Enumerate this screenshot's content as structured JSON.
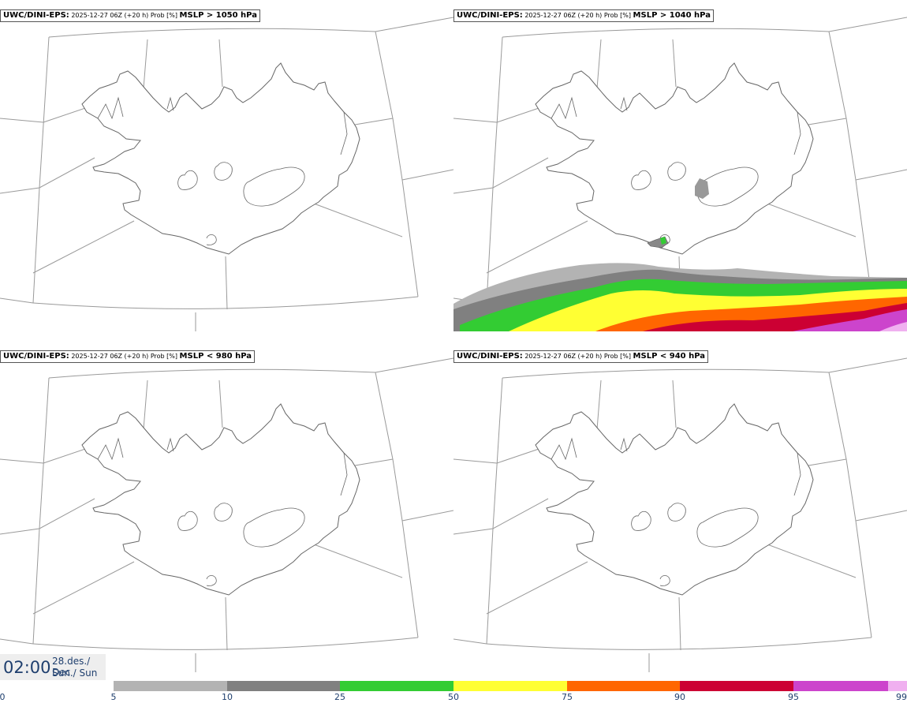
{
  "panels": [
    {
      "model": "UWC/DINI-EPS:",
      "info": "2025-12-27 06Z (+20 h) Prob [%]",
      "threshold": "MSLP > 1050 hPa"
    },
    {
      "model": "UWC/DINI-EPS:",
      "info": "2025-12-27 06Z (+20 h) Prob [%]",
      "threshold": "MSLP > 1040 hPa"
    },
    {
      "model": "UWC/DINI-EPS:",
      "info": "2025-12-27 06Z (+20 h) Prob [%]",
      "threshold": "MSLP < 980 hPa"
    },
    {
      "model": "UWC/DINI-EPS:",
      "info": "2025-12-27 06Z (+20 h) Prob [%]",
      "threshold": "MSLP < 940 hPa"
    }
  ],
  "time": {
    "clock": "02:00",
    "date_line": "28.des./ Dec",
    "day_line": "Sun./ Sun"
  },
  "legend": {
    "ticks": [
      "0",
      "5",
      "10",
      "25",
      "50",
      "75",
      "90",
      "95",
      "99"
    ],
    "segments": [
      {
        "from": 5,
        "to": 10,
        "color": "#b3b3b3"
      },
      {
        "from": 10,
        "to": 25,
        "color": "#808080"
      },
      {
        "from": 25,
        "to": 50,
        "color": "#33cc33"
      },
      {
        "from": 50,
        "to": 75,
        "color": "#ffff33"
      },
      {
        "from": 75,
        "to": 90,
        "color": "#ff6600"
      },
      {
        "from": 90,
        "to": 95,
        "color": "#cc0033"
      },
      {
        "from": 95,
        "to": 99,
        "color": "#cc44cc"
      },
      {
        "from": 99,
        "to": 100,
        "color": "#f0b0f0"
      }
    ]
  }
}
